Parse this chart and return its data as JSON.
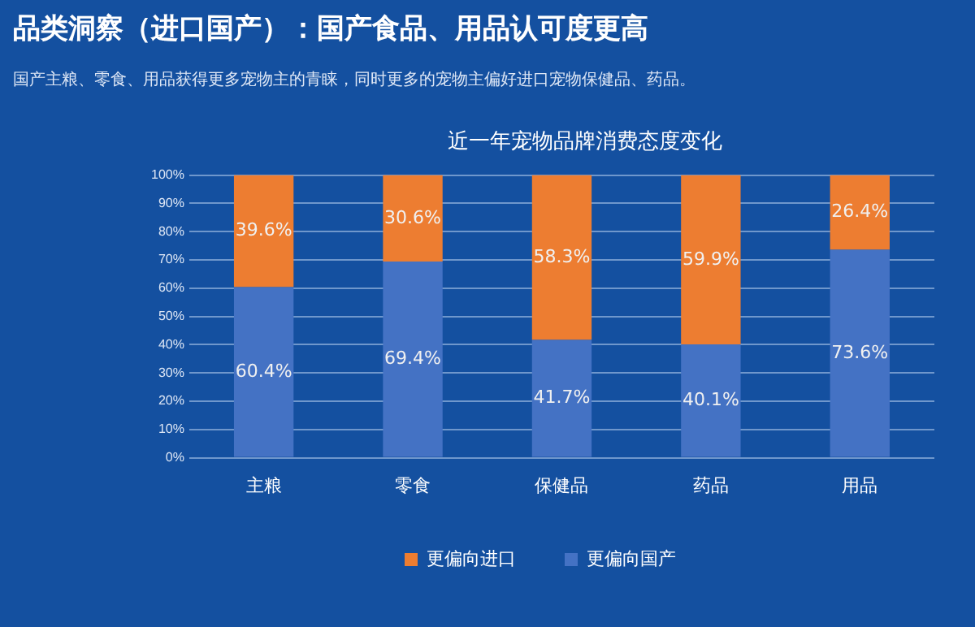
{
  "chart_data": {
    "type": "bar",
    "title": "品类洞察（进口国产）：国产食品、用品认可度更高",
    "subtitle": "国产主粮、零食、用品获得更多宠物主的青睐，同时更多的宠物主偏好进口宠物保健品、药品。",
    "annotations": [
      "近一年宠物品牌消费态度变化"
    ],
    "categories": [
      "主粮",
      "零食",
      "保健品",
      "药品",
      "用品"
    ],
    "stacked": true,
    "series": [
      {
        "name": "更偏向国产",
        "color": "#4472c4",
        "values": [
          60.4,
          69.4,
          41.7,
          40.1,
          73.6
        ],
        "value_labels": [
          "60.4%",
          "69.4%",
          "41.7%",
          "40.1%",
          "73.6%"
        ]
      },
      {
        "name": "更偏向进口",
        "color": "#ed7d31",
        "values": [
          39.6,
          30.6,
          58.3,
          59.9,
          26.4
        ],
        "value_labels": [
          "39.6%",
          "30.6%",
          "58.3%",
          "59.9%",
          "26.4%"
        ]
      }
    ],
    "ylim": [
      0,
      100
    ],
    "yticks": [
      {
        "value": 0,
        "label": "0%"
      },
      {
        "value": 10,
        "label": "10%"
      },
      {
        "value": 20,
        "label": "20%"
      },
      {
        "value": 30,
        "label": "30%"
      },
      {
        "value": 40,
        "label": "40%"
      },
      {
        "value": 50,
        "label": "50%"
      },
      {
        "value": 60,
        "label": "60%"
      },
      {
        "value": 70,
        "label": "70%"
      },
      {
        "value": 80,
        "label": "80%"
      },
      {
        "value": 90,
        "label": "90%"
      },
      {
        "value": 100,
        "label": "100%"
      }
    ],
    "grid": "y",
    "legend": "bottom"
  }
}
